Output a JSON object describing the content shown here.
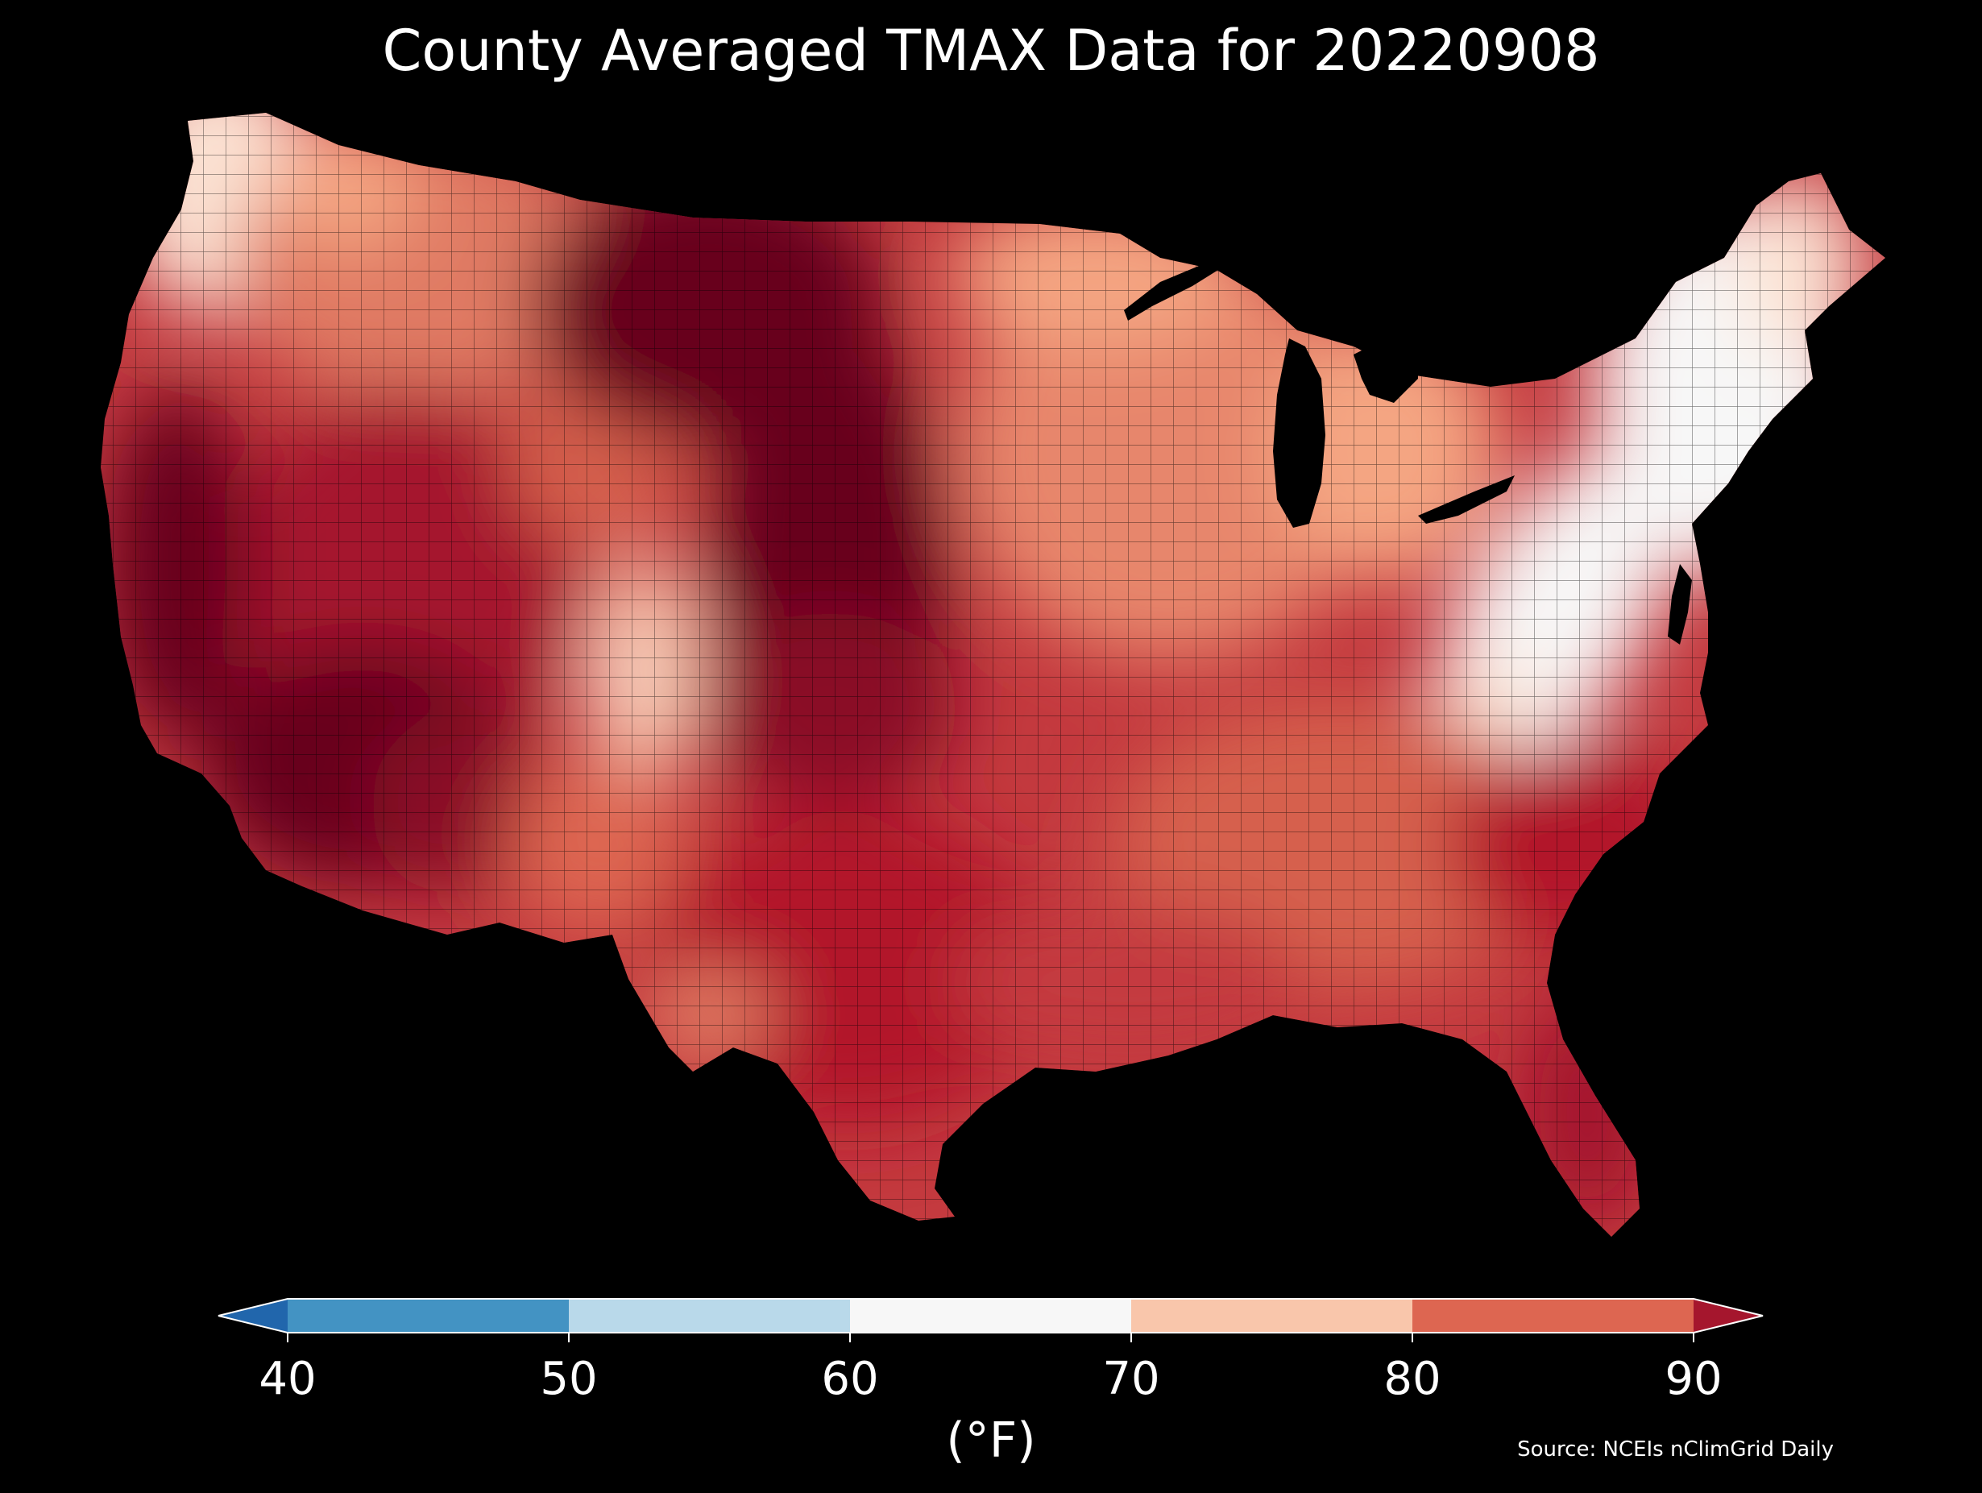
{
  "title": "County Averaged TMAX Data for 20220908",
  "map": {
    "region": "contiguous-us-counties",
    "background_color": "#000000",
    "county_border_color": "#000000",
    "regions": [
      {
        "name": "pacific-northwest-coast",
        "color": "#fbe3d4"
      },
      {
        "name": "northern-rockies",
        "color": "#f4a582"
      },
      {
        "name": "great-basin",
        "color": "#b2182b"
      },
      {
        "name": "california-valley",
        "color": "#67001f"
      },
      {
        "name": "southwest-desert",
        "color": "#67001f"
      },
      {
        "name": "colorado-rockies",
        "color": "#f7c6ad"
      },
      {
        "name": "northern-plains",
        "color": "#67001f"
      },
      {
        "name": "southern-plains",
        "color": "#8a0b25"
      },
      {
        "name": "texas",
        "color": "#b2182b"
      },
      {
        "name": "midwest",
        "color": "#e7866c"
      },
      {
        "name": "great-lakes",
        "color": "#f4a582"
      },
      {
        "name": "appalachians",
        "color": "#f7f7f7"
      },
      {
        "name": "northeast",
        "color": "#fbe3d4"
      },
      {
        "name": "southeast",
        "color": "#d6604d"
      },
      {
        "name": "gulf-coast",
        "color": "#c43a3f"
      },
      {
        "name": "florida",
        "color": "#b2182b"
      }
    ]
  },
  "colorbar": {
    "boundaries": [
      40,
      50,
      60,
      70,
      80,
      90
    ],
    "tick_labels": [
      "40",
      "50",
      "60",
      "70",
      "80",
      "90"
    ],
    "colors": [
      "#4393c3",
      "#b9d9ea",
      "#f7f7f7",
      "#f9c6ab",
      "#dd6651"
    ],
    "under_color": "#2166ac",
    "over_color": "#a5162d",
    "extend": "both",
    "units": "(°F)"
  },
  "source": "Source: NCEIs nClimGrid Daily"
}
